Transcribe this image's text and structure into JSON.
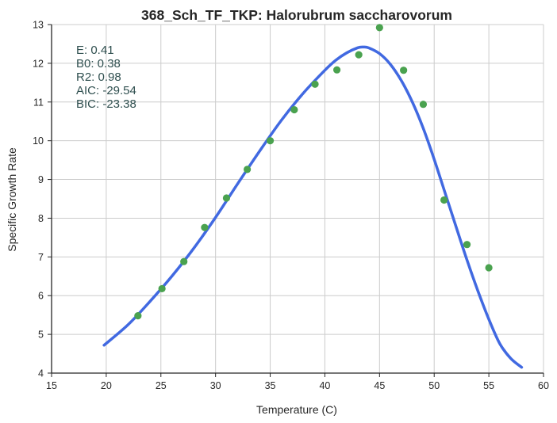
{
  "chart_data": {
    "type": "scatter",
    "title": "368_Sch_TF_TKP: Halorubrum saccharovorum",
    "xlabel": "Temperature (C)",
    "ylabel": "Specific Growth Rate",
    "xlim": [
      15,
      60
    ],
    "ylim": [
      4,
      13
    ],
    "xticks": [
      "15",
      "20",
      "25",
      "30",
      "35",
      "40",
      "45",
      "50",
      "55",
      "60"
    ],
    "yticks": [
      "4",
      "5",
      "6",
      "7",
      "8",
      "9",
      "10",
      "11",
      "12",
      "13"
    ],
    "grid": true,
    "points_color": "#4aa24f",
    "line_color": "#4169e1",
    "points": [
      {
        "x": 22.9,
        "y": 5.48
      },
      {
        "x": 25.1,
        "y": 6.18
      },
      {
        "x": 27.1,
        "y": 6.88
      },
      {
        "x": 29.0,
        "y": 7.76
      },
      {
        "x": 31.0,
        "y": 8.52
      },
      {
        "x": 32.9,
        "y": 9.26
      },
      {
        "x": 35.0,
        "y": 10.0
      },
      {
        "x": 37.2,
        "y": 10.8
      },
      {
        "x": 39.1,
        "y": 11.46
      },
      {
        "x": 41.1,
        "y": 11.83
      },
      {
        "x": 43.1,
        "y": 12.22
      },
      {
        "x": 45.0,
        "y": 12.92
      },
      {
        "x": 47.2,
        "y": 11.82
      },
      {
        "x": 49.0,
        "y": 10.94
      },
      {
        "x": 50.9,
        "y": 8.47
      },
      {
        "x": 53.0,
        "y": 7.32
      },
      {
        "x": 55.0,
        "y": 6.72
      }
    ],
    "fit_line": {
      "x": [
        19.8,
        22,
        24,
        26,
        28,
        30,
        32,
        34,
        36,
        38,
        40,
        41,
        42,
        43,
        43.5,
        44,
        45,
        46,
        47,
        48,
        49,
        50,
        51,
        52,
        53,
        54,
        55,
        56,
        57,
        58
      ],
      "y": [
        4.72,
        5.25,
        5.85,
        6.5,
        7.22,
        8.02,
        8.88,
        9.72,
        10.52,
        11.22,
        11.82,
        12.08,
        12.27,
        12.4,
        12.42,
        12.4,
        12.25,
        11.97,
        11.55,
        11.0,
        10.32,
        9.52,
        8.65,
        7.78,
        6.92,
        6.12,
        5.39,
        4.76,
        4.38,
        4.15
      ]
    },
    "annotations": [
      "E:  0.41",
      "B0:  0.38",
      "R2:  0.98",
      "AIC: -29.54",
      "BIC: -23.38"
    ]
  }
}
